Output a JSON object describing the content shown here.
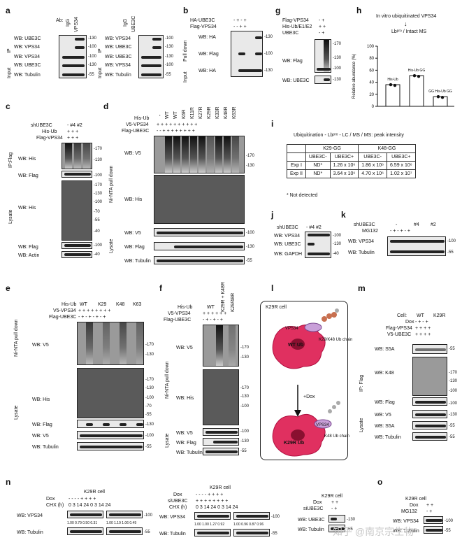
{
  "panel_letters": [
    "a",
    "b",
    "c",
    "d",
    "e",
    "f",
    "g",
    "h",
    "i",
    "j",
    "k",
    "l",
    "m",
    "n",
    "o"
  ],
  "a": {
    "ab_label": "Ab:",
    "left_cols": [
      "IgG",
      "VPS34"
    ],
    "right_cols": [
      "IgG",
      "UBE3C"
    ],
    "ip_label": "IP",
    "input_label": "Input",
    "left_rows": [
      "WB: UBE3C",
      "WB: VPS34",
      "WB: VPS34",
      "WB: UBE3C",
      "WB: Tubulin"
    ],
    "right_rows": [
      "WB: VPS34",
      "WB: UBE3C",
      "WB: UBE3C",
      "WB: VPS34",
      "WB: Tubulin"
    ],
    "mw_left": [
      "-130",
      "-100",
      "-100",
      "-130",
      "-55"
    ],
    "mw_right": [
      "-100",
      "-130",
      "-130",
      "-100",
      "-55"
    ]
  },
  "b": {
    "conds": [
      "HA-UBE3C",
      "Flag-VPS34"
    ],
    "signs": [
      "- + - +",
      "- - + +"
    ],
    "pulldown": "Pull down",
    "input": "Input",
    "rows": [
      "WB: HA",
      "WB: Flag",
      "WB: HA"
    ],
    "mw": [
      "-130",
      "-100",
      "-130"
    ]
  },
  "c": {
    "conds": [
      "shUBE3C",
      "His-Ub",
      "Flag-VPS34"
    ],
    "signs": [
      "-  #4  #2",
      "+  +  +",
      "+  +  +"
    ],
    "side_ip": "IP:Flag",
    "side_lysate": "Lysate",
    "rows": [
      "WB: His",
      "WB: Flag",
      "WB: His",
      "WB: Flag",
      "WB: Actin"
    ],
    "mw": [
      "-170",
      "-130",
      "-100",
      "-170",
      "-130",
      "-100",
      "-70",
      "-55",
      "-40",
      "-100",
      "-40"
    ]
  },
  "d": {
    "conds": [
      "His-Ub",
      "V5-VPS34",
      "Flag-UBE3C"
    ],
    "lanes": [
      "-",
      "WT",
      "WT",
      "K6R",
      "K11R",
      "K27R",
      "K29R",
      "K33R",
      "K48R",
      "K63R"
    ],
    "side_pulldown": "Ni-NTA pull down",
    "side_lysate": "Lysate",
    "rows": [
      "WB: V5",
      "WB: His",
      "WB: V5",
      "WB: Flag",
      "WB: Tubulin"
    ],
    "mw": [
      "-170",
      "-130",
      "-100",
      "-130",
      "-55"
    ]
  },
  "e": {
    "conds": [
      "His-Ub",
      "V5-VPS34",
      "Flag-UBE3C"
    ],
    "groups": [
      "WT",
      "K29",
      "K48",
      "K63"
    ],
    "side_pulldown": "Ni-NTA pull down",
    "side_lysate": "Lysate",
    "rows": [
      "WB: V5",
      "WB: His",
      "WB: Flag",
      "WB: V5",
      "WB: Tubulin"
    ],
    "mw": [
      "-170",
      "-130",
      "-170",
      "-130",
      "-100",
      "-70",
      "-55",
      "-130",
      "-100",
      "-55"
    ]
  },
  "f": {
    "conds": [
      "His-Ub",
      "V5-VPS34",
      "Flag-UBE3C"
    ],
    "groups": [
      "WT",
      "K29R + K48R",
      "K29/48R"
    ],
    "side_pulldown": "Ni-NTA pull down",
    "side_lysate": "Lysate",
    "rows": [
      "WB: V5",
      "WB: His",
      "WB: V5",
      "WB: Flag",
      "WB: Tubulin"
    ],
    "mw": [
      "-170",
      "-130",
      "-170",
      "-130",
      "-100",
      "-100",
      "-130",
      "-55"
    ]
  },
  "g": {
    "conds": [
      "Flag-VPS34",
      "His-Ub/E1/E2",
      "UBE3C"
    ],
    "rows": [
      "WB: Flag",
      "WB: UBE3C"
    ],
    "mw": [
      "-170",
      "-130",
      "-100",
      "-130"
    ]
  },
  "h": {
    "title": "In vitro ubiquitinated VPS34",
    "subtitle": "Lbᵖʳᵒ / Intact MS",
    "ylabel": "Relative abundance (%)",
    "yticks": [
      "100",
      "80",
      "60",
      "40",
      "20",
      "0"
    ],
    "labels": [
      "His-Ub",
      "His-Ub GG",
      "GG His-Ub GG"
    ]
  },
  "chart_data": {
    "type": "bar",
    "categories": [
      "His-Ub",
      "His-Ub-GG",
      "GG-His-Ub-GG"
    ],
    "values": [
      36,
      51,
      16
    ],
    "ylabel": "Relative abundance (%)",
    "ylim": [
      0,
      100
    ]
  },
  "i": {
    "title": "Ubiquitination - Lbᵖʳᵒ - LC / MS / MS: peak intensity",
    "head1": [
      "K29-GG",
      "K48-GG"
    ],
    "head2": [
      "UBE3C-",
      "UBE3C+",
      "UBE3C-",
      "UBE3C+"
    ],
    "rows": [
      {
        "name": "Exp I",
        "vals": [
          "ND*",
          "1.26 x 10⁶",
          "1.86 x 10⁶",
          "6.59 x 10⁶"
        ]
      },
      {
        "name": "Exp II",
        "vals": [
          "ND*",
          "3.64 x 10⁶",
          "4.70 x 10⁶",
          "1.02 x 10⁷"
        ]
      }
    ],
    "note": "* Not detected"
  },
  "j": {
    "conds": [
      "shUBE3C"
    ],
    "signs": [
      "-  #4  #2"
    ],
    "rows": [
      "WB: VPS34",
      "WB: UBE3C",
      "WB: GAPDH"
    ],
    "mw": [
      "-100",
      "-130",
      "-40"
    ]
  },
  "k": {
    "conds": [
      "shUBE3C",
      "MG132"
    ],
    "groups": [
      "-",
      "#4",
      "#2"
    ],
    "signs": [
      "- + - + - +"
    ],
    "rows": [
      "WB: VPS34",
      "WB: Tubulin"
    ],
    "mw": [
      "-100",
      "-55"
    ]
  },
  "l": {
    "cell": "K29R cell",
    "top_label": "WT Ub",
    "top_chain": "K29/K48 Ub chain",
    "dox": "+Dox",
    "bottom_label": "K29R Ub",
    "bottom_chain": "K48 Ub chain",
    "protein": "VPS34"
  },
  "m": {
    "conds": [
      "Cell:",
      "Dox",
      "Flag-VPS34",
      "V5-UBE3C"
    ],
    "groups": [
      "WT",
      "K29R"
    ],
    "side_ip": "IP: Flag",
    "side_lysate": "Lysate",
    "rows": [
      "WB: S5A",
      "WB: K48",
      "WB: Flag",
      "WB: V5",
      "WB: S5A",
      "WB: Tubulin"
    ],
    "mw": [
      "-55",
      "-170",
      "-130",
      "-100",
      "-100",
      "-130",
      "-55",
      "-55"
    ]
  },
  "n": {
    "cell": "K29R cell",
    "conds1": [
      "Dox",
      "CHX (h)"
    ],
    "chx": [
      "0",
      "3",
      "14",
      "24",
      "0",
      "3",
      "14",
      "24"
    ],
    "quant1": [
      "1.00",
      "0.79",
      "0.50",
      "0.31",
      "1.00",
      "1.19",
      "1.06",
      "0.49"
    ],
    "conds2": [
      "Dox",
      "siUBE3C",
      "CHX (h)"
    ],
    "quant2": [
      "1.00",
      "1.00",
      "1.27",
      "0.92",
      "1.00",
      "0.96",
      "0.87",
      "0.96"
    ],
    "rows": [
      "WB: VPS34",
      "WB: Tubulin"
    ],
    "mw": [
      "-100",
      "-55"
    ],
    "side_cell": "K29R cell",
    "side_conds": [
      "Dox",
      "siUBE3C"
    ],
    "side_rows": [
      "WB: UBE3C",
      "WB: Tubulin"
    ],
    "side_mw": [
      "-130",
      "-55"
    ]
  },
  "o": {
    "cell": "K29R cell",
    "conds": [
      "Dox",
      "MG132"
    ],
    "rows": [
      "WB: VPS34",
      "WB: Tubulin"
    ],
    "mw": [
      "-100",
      "-55"
    ]
  },
  "watermark": "知乎 @南京宗生物"
}
